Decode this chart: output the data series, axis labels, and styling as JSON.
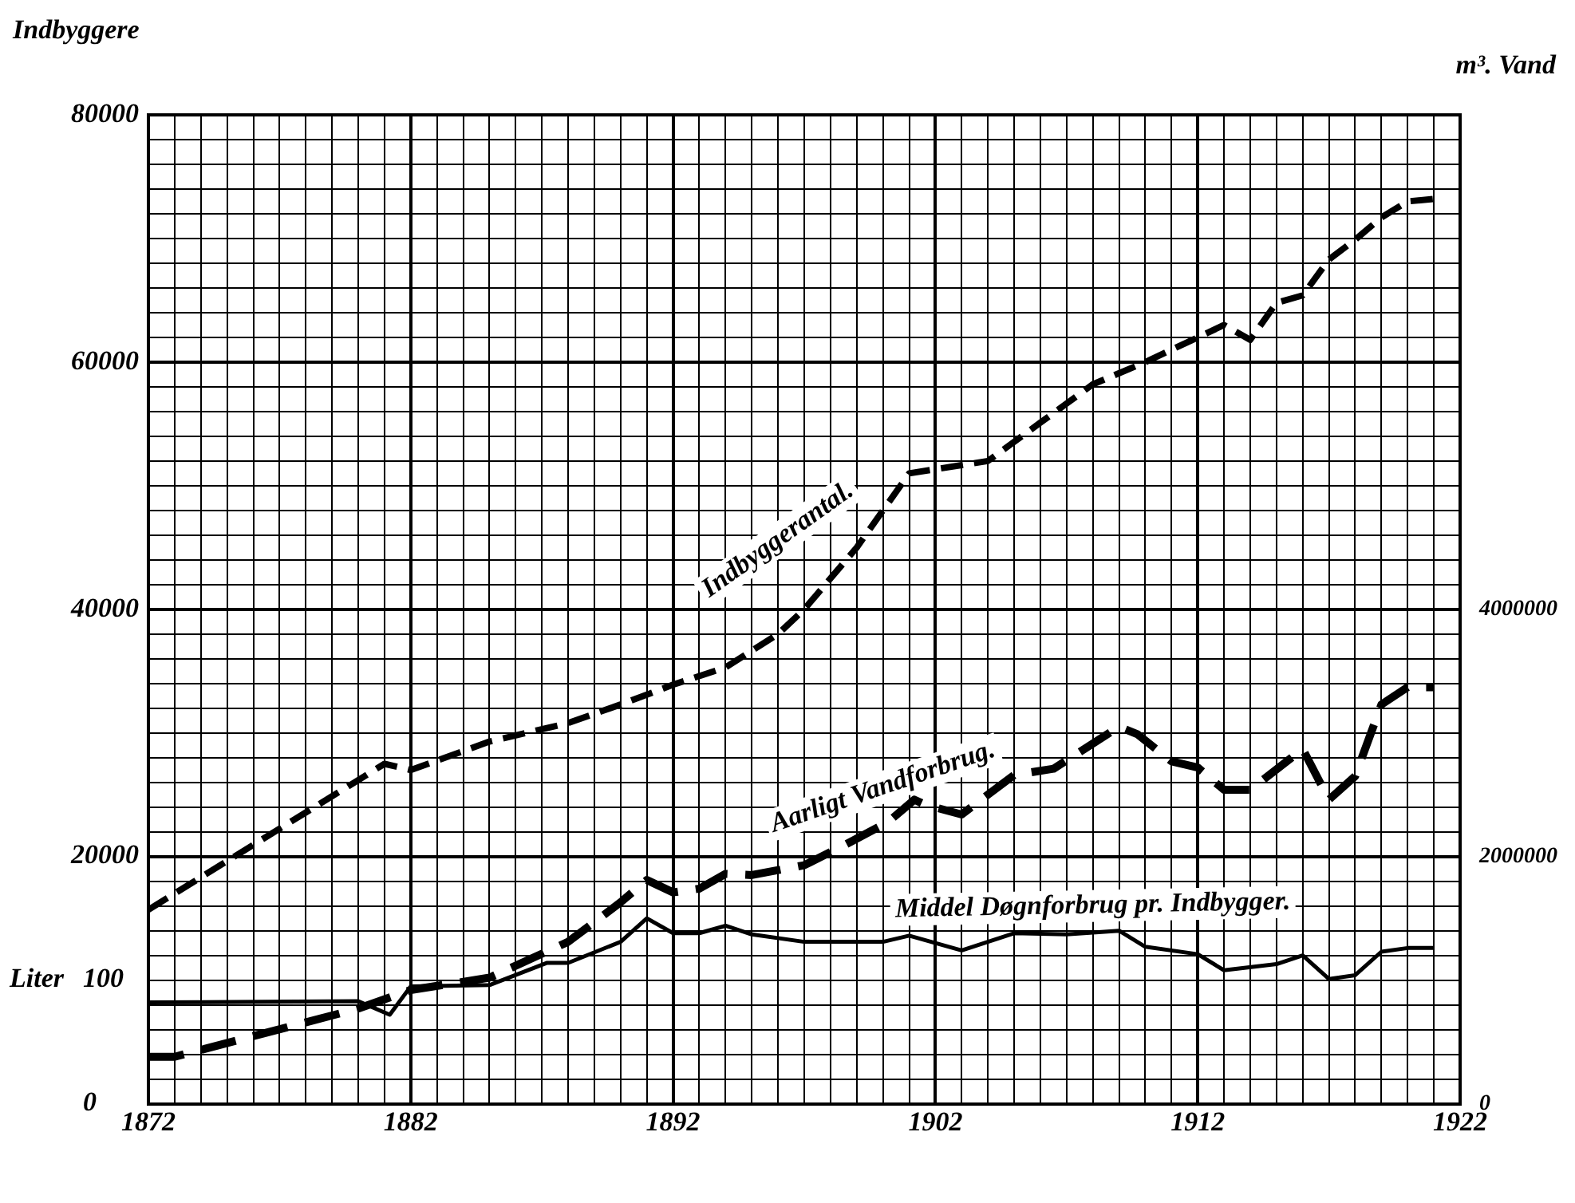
{
  "chart_data": {
    "type": "line",
    "ylabel": "Indbyggere",
    "y2label": "m³. Vand",
    "xlim": [
      1872,
      1922
    ],
    "xticks": [
      1872,
      {
        "value": 1873,
        "label": null
      },
      {
        "value": 1874,
        "label": null
      },
      {
        "value": 1875,
        "label": null
      },
      {
        "value": 1876,
        "label": null
      },
      {
        "value": 1877,
        "label": null
      },
      {
        "value": 1878,
        "label": null
      },
      {
        "value": 1879,
        "label": null
      },
      {
        "value": 1880,
        "label": null
      },
      {
        "value": 1881,
        "label": null
      },
      1882,
      {
        "value": 1883,
        "label": null
      },
      {
        "value": 1884,
        "label": null
      },
      {
        "value": 1885,
        "label": null
      },
      {
        "value": 1886,
        "label": null
      },
      {
        "value": 1887,
        "label": null
      },
      {
        "value": 1888,
        "label": null
      },
      {
        "value": 1889,
        "label": null
      },
      {
        "value": 1890,
        "label": null
      },
      {
        "value": 1891,
        "label": null
      },
      1892,
      {
        "value": 1893,
        "label": null
      },
      {
        "value": 1894,
        "label": null
      },
      {
        "value": 1895,
        "label": null
      },
      {
        "value": 1896,
        "label": null
      },
      {
        "value": 1897,
        "label": null
      },
      {
        "value": 1898,
        "label": null
      },
      {
        "value": 1899,
        "label": null
      },
      {
        "value": 1900,
        "label": null
      },
      {
        "value": 1901,
        "label": null
      },
      1902,
      {
        "value": 1903,
        "label": null
      },
      {
        "value": 1904,
        "label": null
      },
      {
        "value": 1905,
        "label": null
      },
      {
        "value": 1906,
        "label": null
      },
      {
        "value": 1907,
        "label": null
      },
      {
        "value": 1908,
        "label": null
      },
      {
        "value": 1909,
        "label": null
      },
      {
        "value": 1910,
        "label": null
      },
      {
        "value": 1911,
        "label": null
      },
      1912,
      {
        "value": 1913,
        "label": null
      },
      {
        "value": 1914,
        "label": null
      },
      {
        "value": 1915,
        "label": null
      },
      {
        "value": 1916,
        "label": null
      },
      {
        "value": 1917,
        "label": null
      },
      {
        "value": 1918,
        "label": null
      },
      {
        "value": 1919,
        "label": null
      },
      {
        "value": 1920,
        "label": null
      },
      {
        "value": 1921,
        "label": null
      },
      1922
    ],
    "ylim": [
      0,
      80000
    ],
    "yticks": [
      {
        "value": 0,
        "label": null
      },
      {
        "value": 2000,
        "label": null
      },
      {
        "value": 4000,
        "label": null
      },
      {
        "value": 6000,
        "label": null
      },
      {
        "value": 8000,
        "label": null
      },
      {
        "value": 10000,
        "label": null
      },
      {
        "value": 12000,
        "label": null
      },
      {
        "value": 14000,
        "label": null
      },
      {
        "value": 16000,
        "label": null
      },
      {
        "value": 18000,
        "label": null
      },
      20000,
      {
        "value": 22000,
        "label": null
      },
      {
        "value": 24000,
        "label": null
      },
      {
        "value": 26000,
        "label": null
      },
      {
        "value": 28000,
        "label": null
      },
      {
        "value": 30000,
        "label": null
      },
      {
        "value": 32000,
        "label": null
      },
      {
        "value": 34000,
        "label": null
      },
      {
        "value": 36000,
        "label": null
      },
      {
        "value": 38000,
        "label": null
      },
      40000,
      {
        "value": 42000,
        "label": null
      },
      {
        "value": 44000,
        "label": null
      },
      {
        "value": 46000,
        "label": null
      },
      {
        "value": 48000,
        "label": null
      },
      {
        "value": 50000,
        "label": null
      },
      {
        "value": 52000,
        "label": null
      },
      {
        "value": 54000,
        "label": null
      },
      {
        "value": 56000,
        "label": null
      },
      {
        "value": 58000,
        "label": null
      },
      60000,
      {
        "value": 62000,
        "label": null
      },
      {
        "value": 64000,
        "label": null
      },
      {
        "value": 66000,
        "label": null
      },
      {
        "value": 68000,
        "label": null
      },
      {
        "value": 70000,
        "label": null
      },
      {
        "value": 72000,
        "label": null
      },
      {
        "value": 74000,
        "label": null
      },
      {
        "value": 76000,
        "label": null
      },
      {
        "value": 78000,
        "label": null
      },
      80000
    ],
    "y2lim": [
      0,
      8000000
    ],
    "y2ticks": [
      0,
      2000000,
      4000000
    ],
    "y3lim": [
      0,
      800
    ],
    "y3label": "Liter",
    "y3ticks": [
      0,
      100
    ],
    "grid": true,
    "legend": false,
    "marker": "none",
    "series": [
      {
        "name": "Indbyggerantal.",
        "color": "#000000",
        "line_style": "dashed",
        "x": [
          1872,
          1881,
          1882,
          1885,
          1888,
          1890,
          1892,
          1894,
          1896,
          1897,
          1899,
          1901,
          1904,
          1906,
          1908,
          1910,
          1913,
          1914,
          1915,
          1916,
          1917,
          1918,
          1919,
          1920,
          1921
        ],
        "values": [
          15700,
          27500,
          27000,
          29300,
          30800,
          32300,
          33900,
          35300,
          38000,
          40000,
          45000,
          51000,
          52000,
          55100,
          58200,
          60000,
          63000,
          61800,
          64800,
          65400,
          68300,
          69900,
          71700,
          73000,
          73200
        ]
      },
      {
        "name": "Aarligt Vandforbrug.",
        "color": "#000000",
        "line_style": "dashed",
        "axis": "y2",
        "x": [
          1872,
          1873,
          1880,
          1882,
          1885,
          1888,
          1890,
          1891,
          1892,
          1893,
          1894,
          1895,
          1897,
          1898.6,
          1900.2,
          1901.2,
          1901.6,
          1903,
          1905,
          1906.5,
          1909,
          1909.7,
          1911,
          1912,
          1913,
          1914,
          1916,
          1917,
          1918,
          1919,
          1920,
          1921
        ],
        "values": [
          380000,
          380000,
          770000,
          920000,
          1020000,
          1310000,
          1630000,
          1810000,
          1710000,
          1740000,
          1860000,
          1850000,
          1930000,
          2100000,
          2280000,
          2460000,
          2420000,
          2340000,
          2660000,
          2710000,
          3050000,
          2990000,
          2770000,
          2720000,
          2540000,
          2540000,
          2870000,
          2460000,
          2650000,
          3230000,
          3370000,
          3370000
        ]
      },
      {
        "name": "Middel Døgnforbrug pr. Indbygger.",
        "color": "#000000",
        "line_style": "solid",
        "axis": "y3",
        "x": [
          1872,
          1880,
          1881.2,
          1882,
          1885,
          1887.2,
          1888,
          1890,
          1891,
          1892,
          1893,
          1894,
          1895,
          1897,
          1900,
          1901,
          1903,
          1905,
          1907,
          1909,
          1910,
          1912,
          1913,
          1915,
          1916,
          1917,
          1918,
          1919,
          1920,
          1921
        ],
        "values": [
          82,
          83,
          72,
          95,
          96,
          114,
          114,
          131,
          150,
          138,
          138,
          144,
          137,
          131,
          131,
          136,
          124,
          138,
          137,
          140,
          127,
          121,
          108,
          113,
          120,
          101,
          104,
          123,
          126,
          126
        ]
      }
    ]
  }
}
